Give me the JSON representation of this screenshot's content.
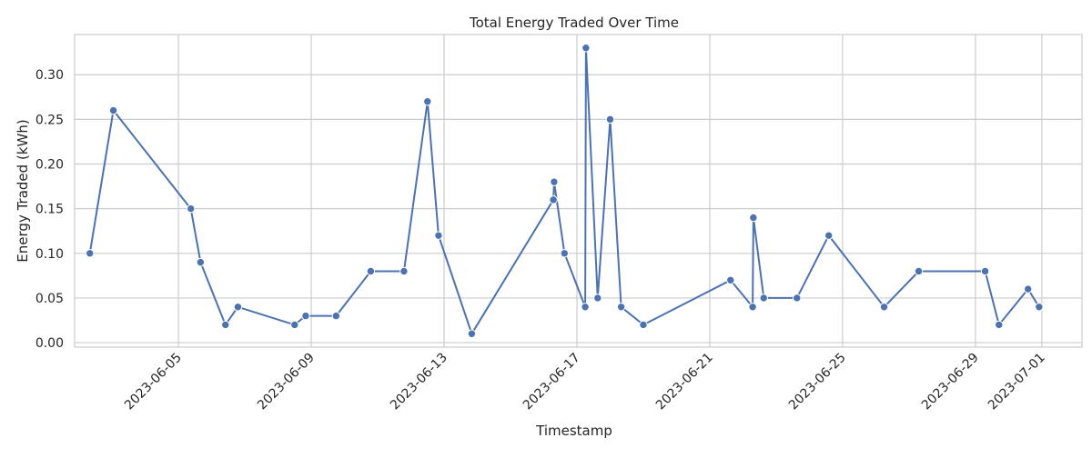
{
  "chart_data": {
    "type": "line",
    "title": "Total Energy Traded Over Time",
    "xlabel": "Timestamp",
    "ylabel": "Energy Traded (kWh)",
    "x_type": "datetime",
    "x_ticks": [
      "2023-06-05",
      "2023-06-09",
      "2023-06-13",
      "2023-06-17",
      "2023-06-21",
      "2023-06-25",
      "2023-06-29",
      "2023-07-01"
    ],
    "y_ticks": [
      "0.00",
      "0.05",
      "0.10",
      "0.15",
      "0.20",
      "0.25",
      "0.30"
    ],
    "ylim": [
      -0.005,
      0.345
    ],
    "xlim": [
      "2023-06-01T21:00",
      "2023-07-02T05:00"
    ],
    "grid": true,
    "line_color": "#4c72b0",
    "series": [
      {
        "x": [
          "2023-06-02T08:00",
          "2023-06-03T01:00",
          "2023-06-05T09:00",
          "2023-06-05T16:00",
          "2023-06-06T10:00",
          "2023-06-06T19:00",
          "2023-06-08T12:00",
          "2023-06-08T20:00",
          "2023-06-09T18:00",
          "2023-06-10T19:00",
          "2023-06-11T19:00",
          "2023-06-12T12:00",
          "2023-06-12T20:00",
          "2023-06-13T20:00",
          "2023-06-16T07:00",
          "2023-06-16T07:30",
          "2023-06-16T15:00",
          "2023-06-17T06:00",
          "2023-06-17T06:30",
          "2023-06-17T15:00",
          "2023-06-18T00:00",
          "2023-06-18T08:00",
          "2023-06-19T00:00",
          "2023-06-21T15:00",
          "2023-06-22T07:00",
          "2023-06-22T07:30",
          "2023-06-22T15:00",
          "2023-06-23T15:00",
          "2023-06-24T14:00",
          "2023-06-26T06:00",
          "2023-06-27T07:00",
          "2023-06-29T07:00",
          "2023-06-29T17:00",
          "2023-06-30T14:00",
          "2023-06-30T22:00"
        ],
        "y": [
          0.1,
          0.26,
          0.15,
          0.09,
          0.02,
          0.04,
          0.02,
          0.03,
          0.03,
          0.08,
          0.08,
          0.27,
          0.12,
          0.01,
          0.16,
          0.18,
          0.1,
          0.04,
          0.33,
          0.05,
          0.25,
          0.04,
          0.02,
          0.07,
          0.04,
          0.14,
          0.05,
          0.05,
          0.12,
          0.04,
          0.08,
          0.08,
          0.02,
          0.06,
          0.04
        ]
      }
    ]
  }
}
